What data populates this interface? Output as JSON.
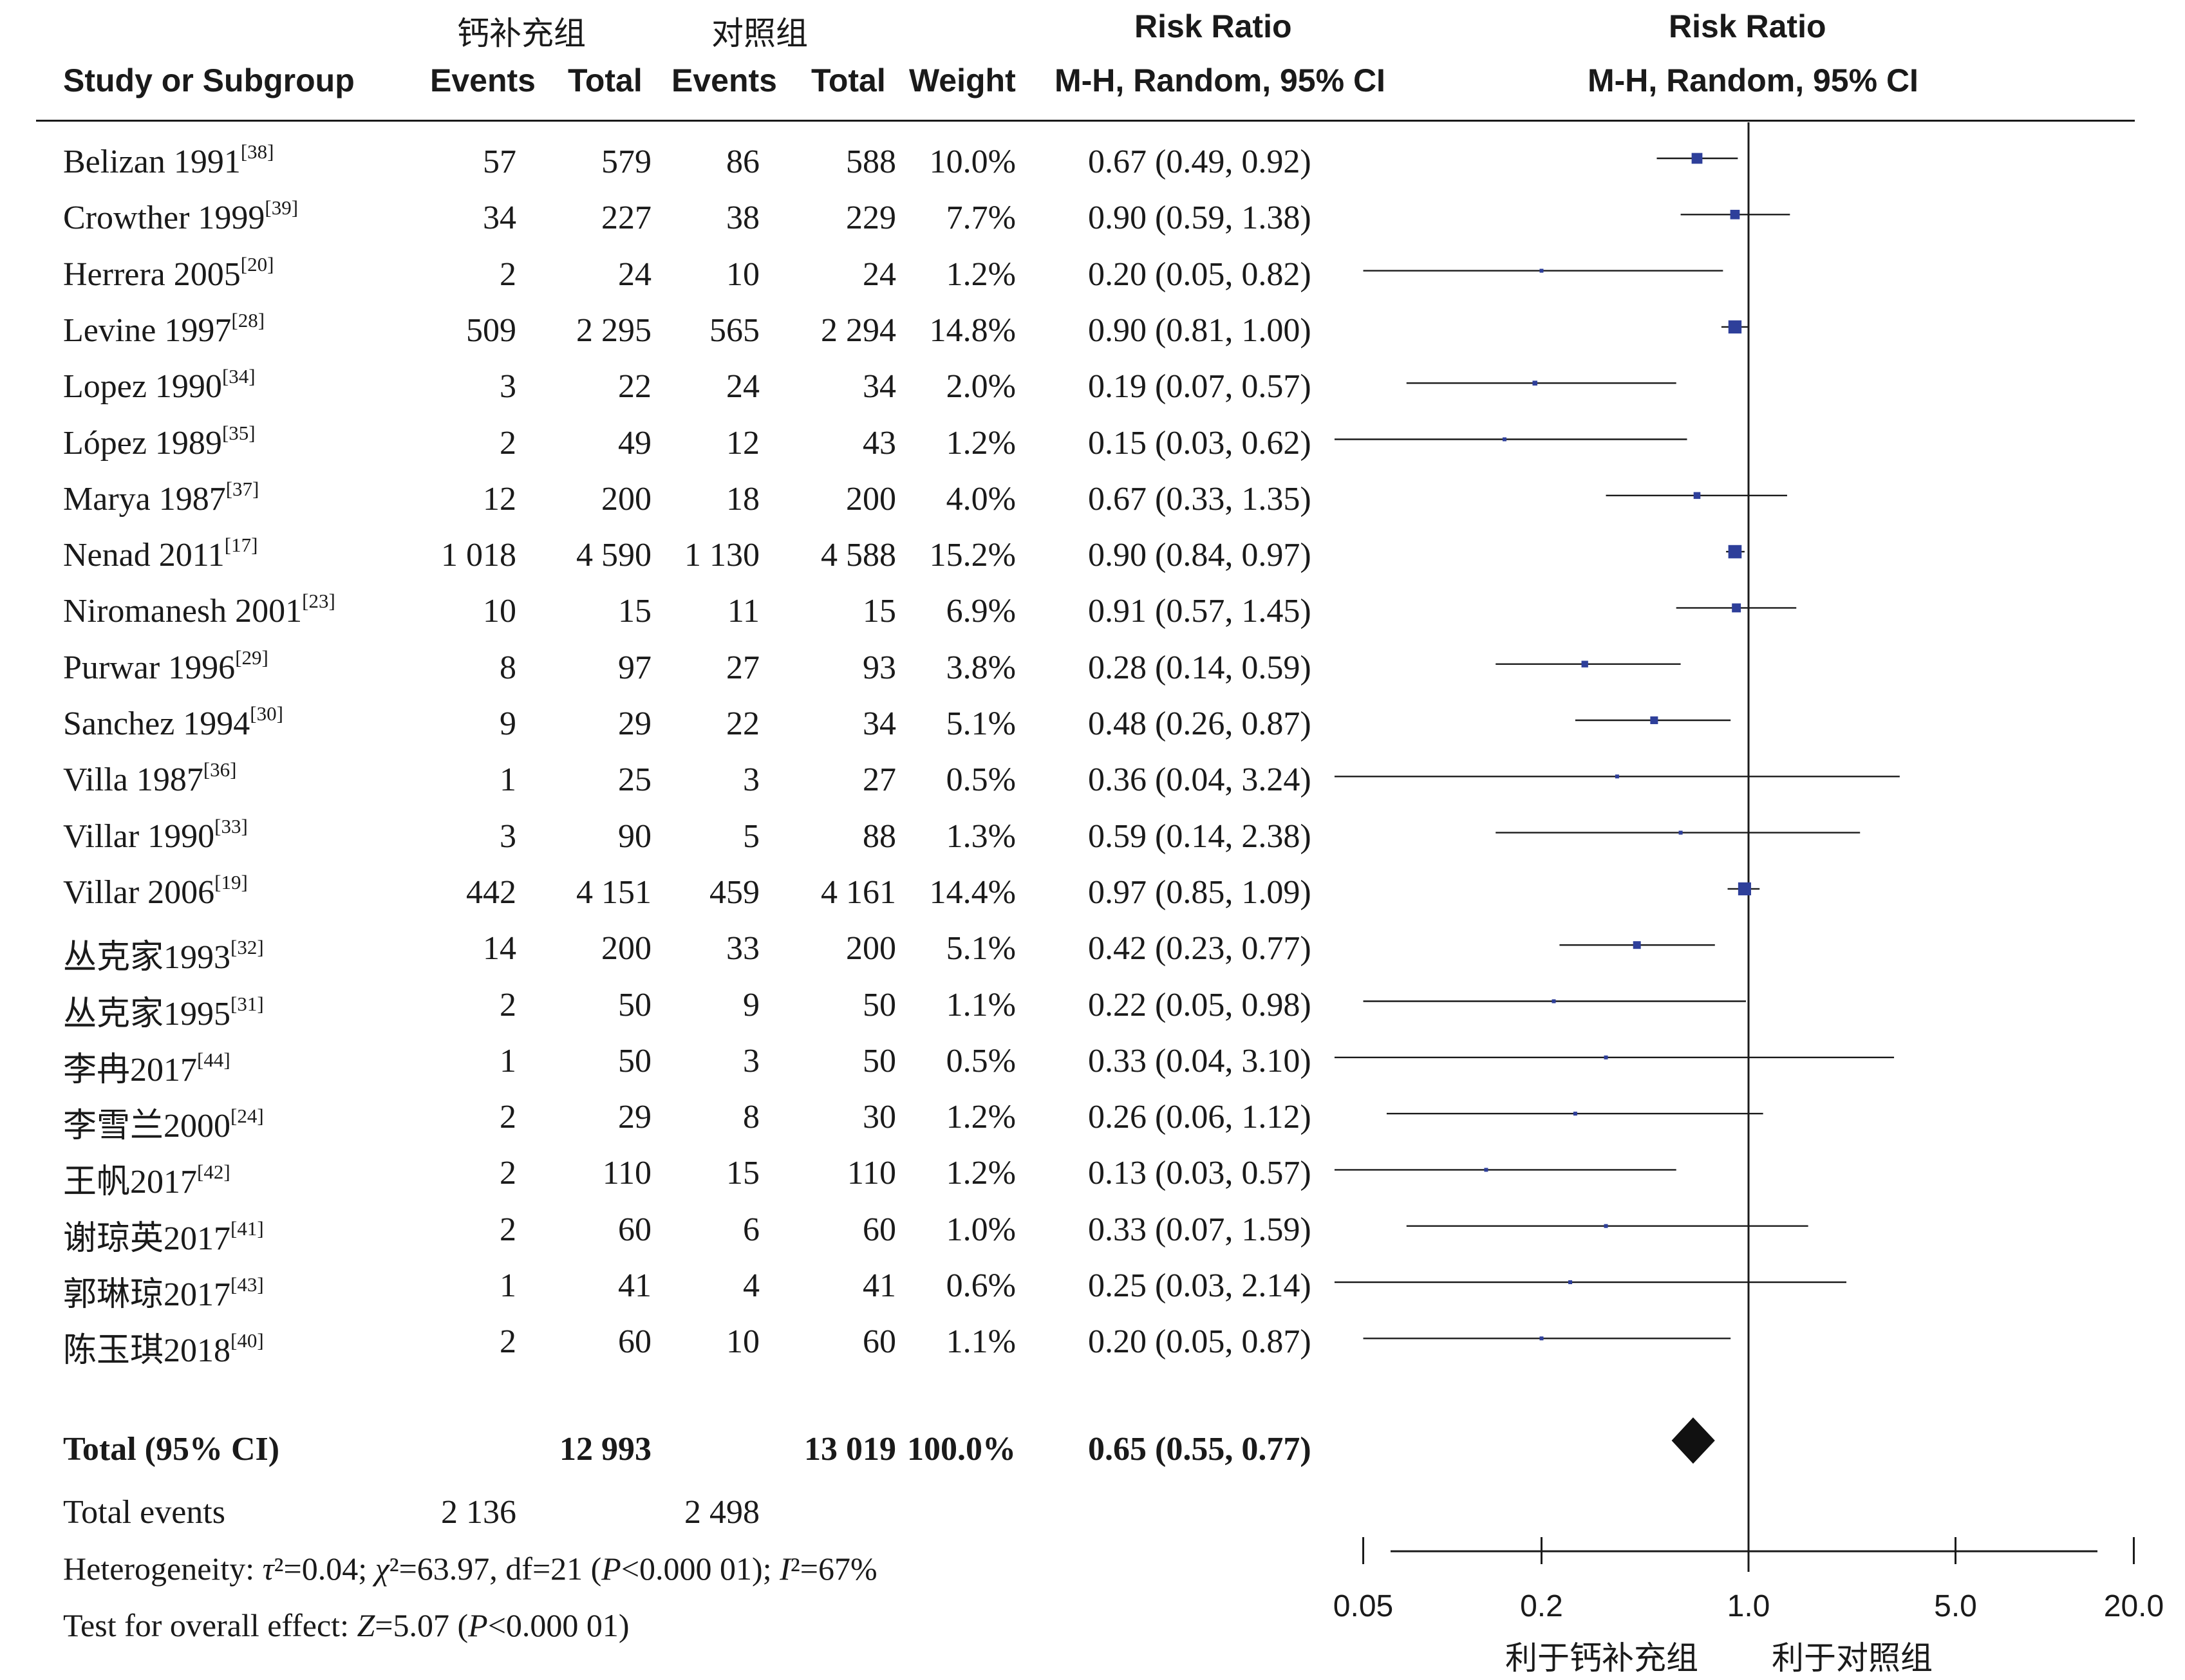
{
  "header": {
    "group1": "钙补充组",
    "group2": "对照组",
    "study_col": "Study or Subgroup",
    "events1": "Events",
    "total1": "Total",
    "events2": "Events",
    "total2": "Total",
    "weight": "Weight",
    "rr_title_left": "Risk Ratio",
    "rr_method_left": "M-H, Random, 95% CI",
    "rr_title_right": "Risk Ratio",
    "rr_method_right": "M-H, Random, 95% CI"
  },
  "studies": [
    {
      "name": "Belizan 1991",
      "ref": "[38]",
      "e1": "57",
      "t1": "579",
      "e2": "86",
      "t2": "588",
      "weight": "10.0%",
      "ci": "0.67 (0.49, 0.92)"
    },
    {
      "name": "Crowther 1999",
      "ref": "[39]",
      "e1": "34",
      "t1": "227",
      "e2": "38",
      "t2": "229",
      "weight": "7.7%",
      "ci": "0.90 (0.59, 1.38)"
    },
    {
      "name": "Herrera 2005",
      "ref": "[20]",
      "e1": "2",
      "t1": "24",
      "e2": "10",
      "t2": "24",
      "weight": "1.2%",
      "ci": "0.20 (0.05, 0.82)"
    },
    {
      "name": "Levine 1997",
      "ref": "[28]",
      "e1": "509",
      "t1": "2 295",
      "e2": "565",
      "t2": "2 294",
      "weight": "14.8%",
      "ci": "0.90 (0.81, 1.00)"
    },
    {
      "name": "Lopez 1990",
      "ref": "[34]",
      "e1": "3",
      "t1": "22",
      "e2": "24",
      "t2": "34",
      "weight": "2.0%",
      "ci": "0.19 (0.07, 0.57)"
    },
    {
      "name": "López 1989",
      "ref": "[35]",
      "e1": "2",
      "t1": "49",
      "e2": "12",
      "t2": "43",
      "weight": "1.2%",
      "ci": "0.15 (0.03, 0.62)"
    },
    {
      "name": "Marya 1987",
      "ref": "[37]",
      "e1": "12",
      "t1": "200",
      "e2": "18",
      "t2": "200",
      "weight": "4.0%",
      "ci": "0.67 (0.33, 1.35)"
    },
    {
      "name": "Nenad 2011",
      "ref": "[17]",
      "e1": "1 018",
      "t1": "4 590",
      "e2": "1 130",
      "t2": "4 588",
      "weight": "15.2%",
      "ci": "0.90 (0.84, 0.97)"
    },
    {
      "name": "Niromanesh 2001",
      "ref": "[23]",
      "e1": "10",
      "t1": "15",
      "e2": "11",
      "t2": "15",
      "weight": "6.9%",
      "ci": "0.91 (0.57, 1.45)"
    },
    {
      "name": "Purwar 1996",
      "ref": "[29]",
      "e1": "8",
      "t1": "97",
      "e2": "27",
      "t2": "93",
      "weight": "3.8%",
      "ci": "0.28 (0.14, 0.59)"
    },
    {
      "name": "Sanchez 1994",
      "ref": "[30]",
      "e1": "9",
      "t1": "29",
      "e2": "22",
      "t2": "34",
      "weight": "5.1%",
      "ci": "0.48 (0.26, 0.87)"
    },
    {
      "name": "Villa 1987",
      "ref": "[36]",
      "e1": "1",
      "t1": "25",
      "e2": "3",
      "t2": "27",
      "weight": "0.5%",
      "ci": "0.36 (0.04, 3.24)"
    },
    {
      "name": "Villar 1990",
      "ref": "[33]",
      "e1": "3",
      "t1": "90",
      "e2": "5",
      "t2": "88",
      "weight": "1.3%",
      "ci": "0.59 (0.14, 2.38)"
    },
    {
      "name": "Villar 2006",
      "ref": "[19]",
      "e1": "442",
      "t1": "4 151",
      "e2": "459",
      "t2": "4 161",
      "weight": "14.4%",
      "ci": "0.97 (0.85, 1.09)"
    },
    {
      "name": "丛克家1993",
      "ref": "[32]",
      "e1": "14",
      "t1": "200",
      "e2": "33",
      "t2": "200",
      "weight": "5.1%",
      "ci": "0.42 (0.23, 0.77)"
    },
    {
      "name": "丛克家1995",
      "ref": "[31]",
      "e1": "2",
      "t1": "50",
      "e2": "9",
      "t2": "50",
      "weight": "1.1%",
      "ci": "0.22 (0.05, 0.98)"
    },
    {
      "name": "李冉2017",
      "ref": "[44]",
      "e1": "1",
      "t1": "50",
      "e2": "3",
      "t2": "50",
      "weight": "0.5%",
      "ci": "0.33 (0.04, 3.10)"
    },
    {
      "name": "李雪兰2000",
      "ref": "[24]",
      "e1": "2",
      "t1": "29",
      "e2": "8",
      "t2": "30",
      "weight": "1.2%",
      "ci": "0.26 (0.06, 1.12)"
    },
    {
      "name": "王帆2017",
      "ref": "[42]",
      "e1": "2",
      "t1": "110",
      "e2": "15",
      "t2": "110",
      "weight": "1.2%",
      "ci": "0.13 (0.03, 0.57)"
    },
    {
      "name": "谢琼英2017",
      "ref": "[41]",
      "e1": "2",
      "t1": "60",
      "e2": "6",
      "t2": "60",
      "weight": "1.0%",
      "ci": "0.33 (0.07, 1.59)"
    },
    {
      "name": "郭琳琼2017",
      "ref": "[43]",
      "e1": "1",
      "t1": "41",
      "e2": "4",
      "t2": "41",
      "weight": "0.6%",
      "ci": "0.25 (0.03, 2.14)"
    },
    {
      "name": "陈玉琪2018",
      "ref": "[40]",
      "e1": "2",
      "t1": "60",
      "e2": "10",
      "t2": "60",
      "weight": "1.1%",
      "ci": "0.20 (0.05, 0.87)"
    }
  ],
  "total": {
    "label": "Total (95% CI)",
    "t1": "12 993",
    "t2": "13 019",
    "weight": "100.0%",
    "ci": "0.65 (0.55, 0.77)"
  },
  "total_events": {
    "label": "Total events",
    "e1": "2 136",
    "e2": "2 498"
  },
  "heterogeneity": {
    "label": "Heterogeneity: ",
    "tau_sym": "τ",
    "tau_val": "²=0.04; ",
    "chi_sym": "χ",
    "chi_val": "²=63.97, df=21 (",
    "p_sym": "P",
    "p_val": "<0.000 01); ",
    "i_sym": "I",
    "i_val": "²=67%"
  },
  "overall": {
    "label": "Test for overall effect: ",
    "z_sym": "Z",
    "z_val": "=5.07 (",
    "p_sym": "P",
    "p_val": "<0.000 01)"
  },
  "axis": {
    "tick_labels": [
      "0.05",
      "0.2",
      "1.0",
      "5.0",
      "20.0"
    ],
    "favours_left": "利于钙补充组",
    "favours_right": "利于对照组"
  },
  "chart_data": {
    "type": "forest",
    "scale": "log",
    "xlim": [
      0.04,
      25
    ],
    "ticks": [
      0.05,
      0.2,
      1.0,
      5.0,
      20.0
    ],
    "reference": 1.0,
    "marker_color": "#2e3f9a",
    "points": [
      {
        "rr": 0.67,
        "lo": 0.49,
        "hi": 0.92,
        "w": 10.0
      },
      {
        "rr": 0.9,
        "lo": 0.59,
        "hi": 1.38,
        "w": 7.7
      },
      {
        "rr": 0.2,
        "lo": 0.05,
        "hi": 0.82,
        "w": 1.2
      },
      {
        "rr": 0.9,
        "lo": 0.81,
        "hi": 1.0,
        "w": 14.8
      },
      {
        "rr": 0.19,
        "lo": 0.07,
        "hi": 0.57,
        "w": 2.0
      },
      {
        "rr": 0.15,
        "lo": 0.03,
        "hi": 0.62,
        "w": 1.2
      },
      {
        "rr": 0.67,
        "lo": 0.33,
        "hi": 1.35,
        "w": 4.0
      },
      {
        "rr": 0.9,
        "lo": 0.84,
        "hi": 0.97,
        "w": 15.2
      },
      {
        "rr": 0.91,
        "lo": 0.57,
        "hi": 1.45,
        "w": 6.9
      },
      {
        "rr": 0.28,
        "lo": 0.14,
        "hi": 0.59,
        "w": 3.8
      },
      {
        "rr": 0.48,
        "lo": 0.26,
        "hi": 0.87,
        "w": 5.1
      },
      {
        "rr": 0.36,
        "lo": 0.04,
        "hi": 3.24,
        "w": 0.5
      },
      {
        "rr": 0.59,
        "lo": 0.14,
        "hi": 2.38,
        "w": 1.3
      },
      {
        "rr": 0.97,
        "lo": 0.85,
        "hi": 1.09,
        "w": 14.4
      },
      {
        "rr": 0.42,
        "lo": 0.23,
        "hi": 0.77,
        "w": 5.1
      },
      {
        "rr": 0.22,
        "lo": 0.05,
        "hi": 0.98,
        "w": 1.1
      },
      {
        "rr": 0.33,
        "lo": 0.04,
        "hi": 3.1,
        "w": 0.5
      },
      {
        "rr": 0.26,
        "lo": 0.06,
        "hi": 1.12,
        "w": 1.2
      },
      {
        "rr": 0.13,
        "lo": 0.03,
        "hi": 0.57,
        "w": 1.2
      },
      {
        "rr": 0.33,
        "lo": 0.07,
        "hi": 1.59,
        "w": 1.0
      },
      {
        "rr": 0.25,
        "lo": 0.03,
        "hi": 2.14,
        "w": 0.6
      },
      {
        "rr": 0.2,
        "lo": 0.05,
        "hi": 0.87,
        "w": 1.1
      }
    ],
    "pooled": {
      "rr": 0.65,
      "lo": 0.55,
      "hi": 0.77
    }
  }
}
